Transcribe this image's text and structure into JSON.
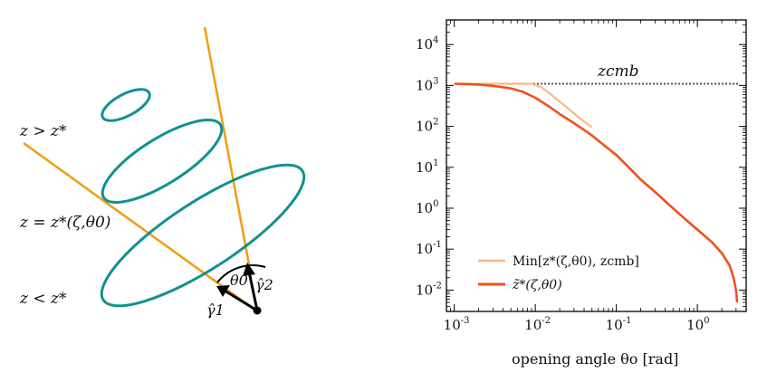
{
  "diagram": {
    "label_z_greater": "z > z*",
    "label_z_equal": "z = z*(ζ,θ0)",
    "label_z_less": "z < z*",
    "label_gamma1": "γ̂1",
    "label_gamma2": "γ̂2",
    "label_theta0": "θ0",
    "colors": {
      "ellipse": "#129191",
      "ray": "#f39c12",
      "arrow": "#000000"
    }
  },
  "chart_data": {
    "type": "line",
    "xscale": "log",
    "yscale": "log",
    "xlim": [
      0.0008,
      4.0
    ],
    "ylim": [
      0.003,
      40000
    ],
    "xticks": [
      "10^-3",
      "10^-2",
      "10^-1",
      "10^0"
    ],
    "yticks": [
      "10^-2",
      "10^-1",
      "10^0",
      "10^1",
      "10^2",
      "10^3",
      "10^4"
    ],
    "xlabel": "opening angle θo   [rad]",
    "annotation": "zcmb",
    "zcmb": 1100,
    "series": [
      {
        "name": "Min[z*(ζ,θ0), zcmb]",
        "color": "#f7b98a",
        "x": [
          0.001,
          0.002,
          0.004,
          0.007,
          0.009,
          0.012,
          0.018,
          0.025,
          0.035,
          0.05
        ],
        "y": [
          1100,
          1100,
          1100,
          1100,
          1100,
          900,
          480,
          280,
          160,
          95
        ]
      },
      {
        "name": "z̃*(ζ,θ0)",
        "color": "#f0501e",
        "x": [
          0.001,
          0.002,
          0.003,
          0.005,
          0.007,
          0.01,
          0.015,
          0.02,
          0.03,
          0.05,
          0.07,
          0.1,
          0.15,
          0.2,
          0.3,
          0.5,
          0.7,
          1.0,
          1.5,
          2.0,
          2.5,
          2.8,
          3.0,
          3.1
        ],
        "y": [
          1100,
          1050,
          980,
          850,
          700,
          500,
          300,
          200,
          120,
          60,
          35,
          20,
          9,
          5,
          2.5,
          1.0,
          0.55,
          0.3,
          0.15,
          0.08,
          0.04,
          0.02,
          0.01,
          0.005
        ]
      }
    ],
    "legend": "bottom-left",
    "colors": {
      "axis": "#000000",
      "reference": "#555555"
    }
  }
}
